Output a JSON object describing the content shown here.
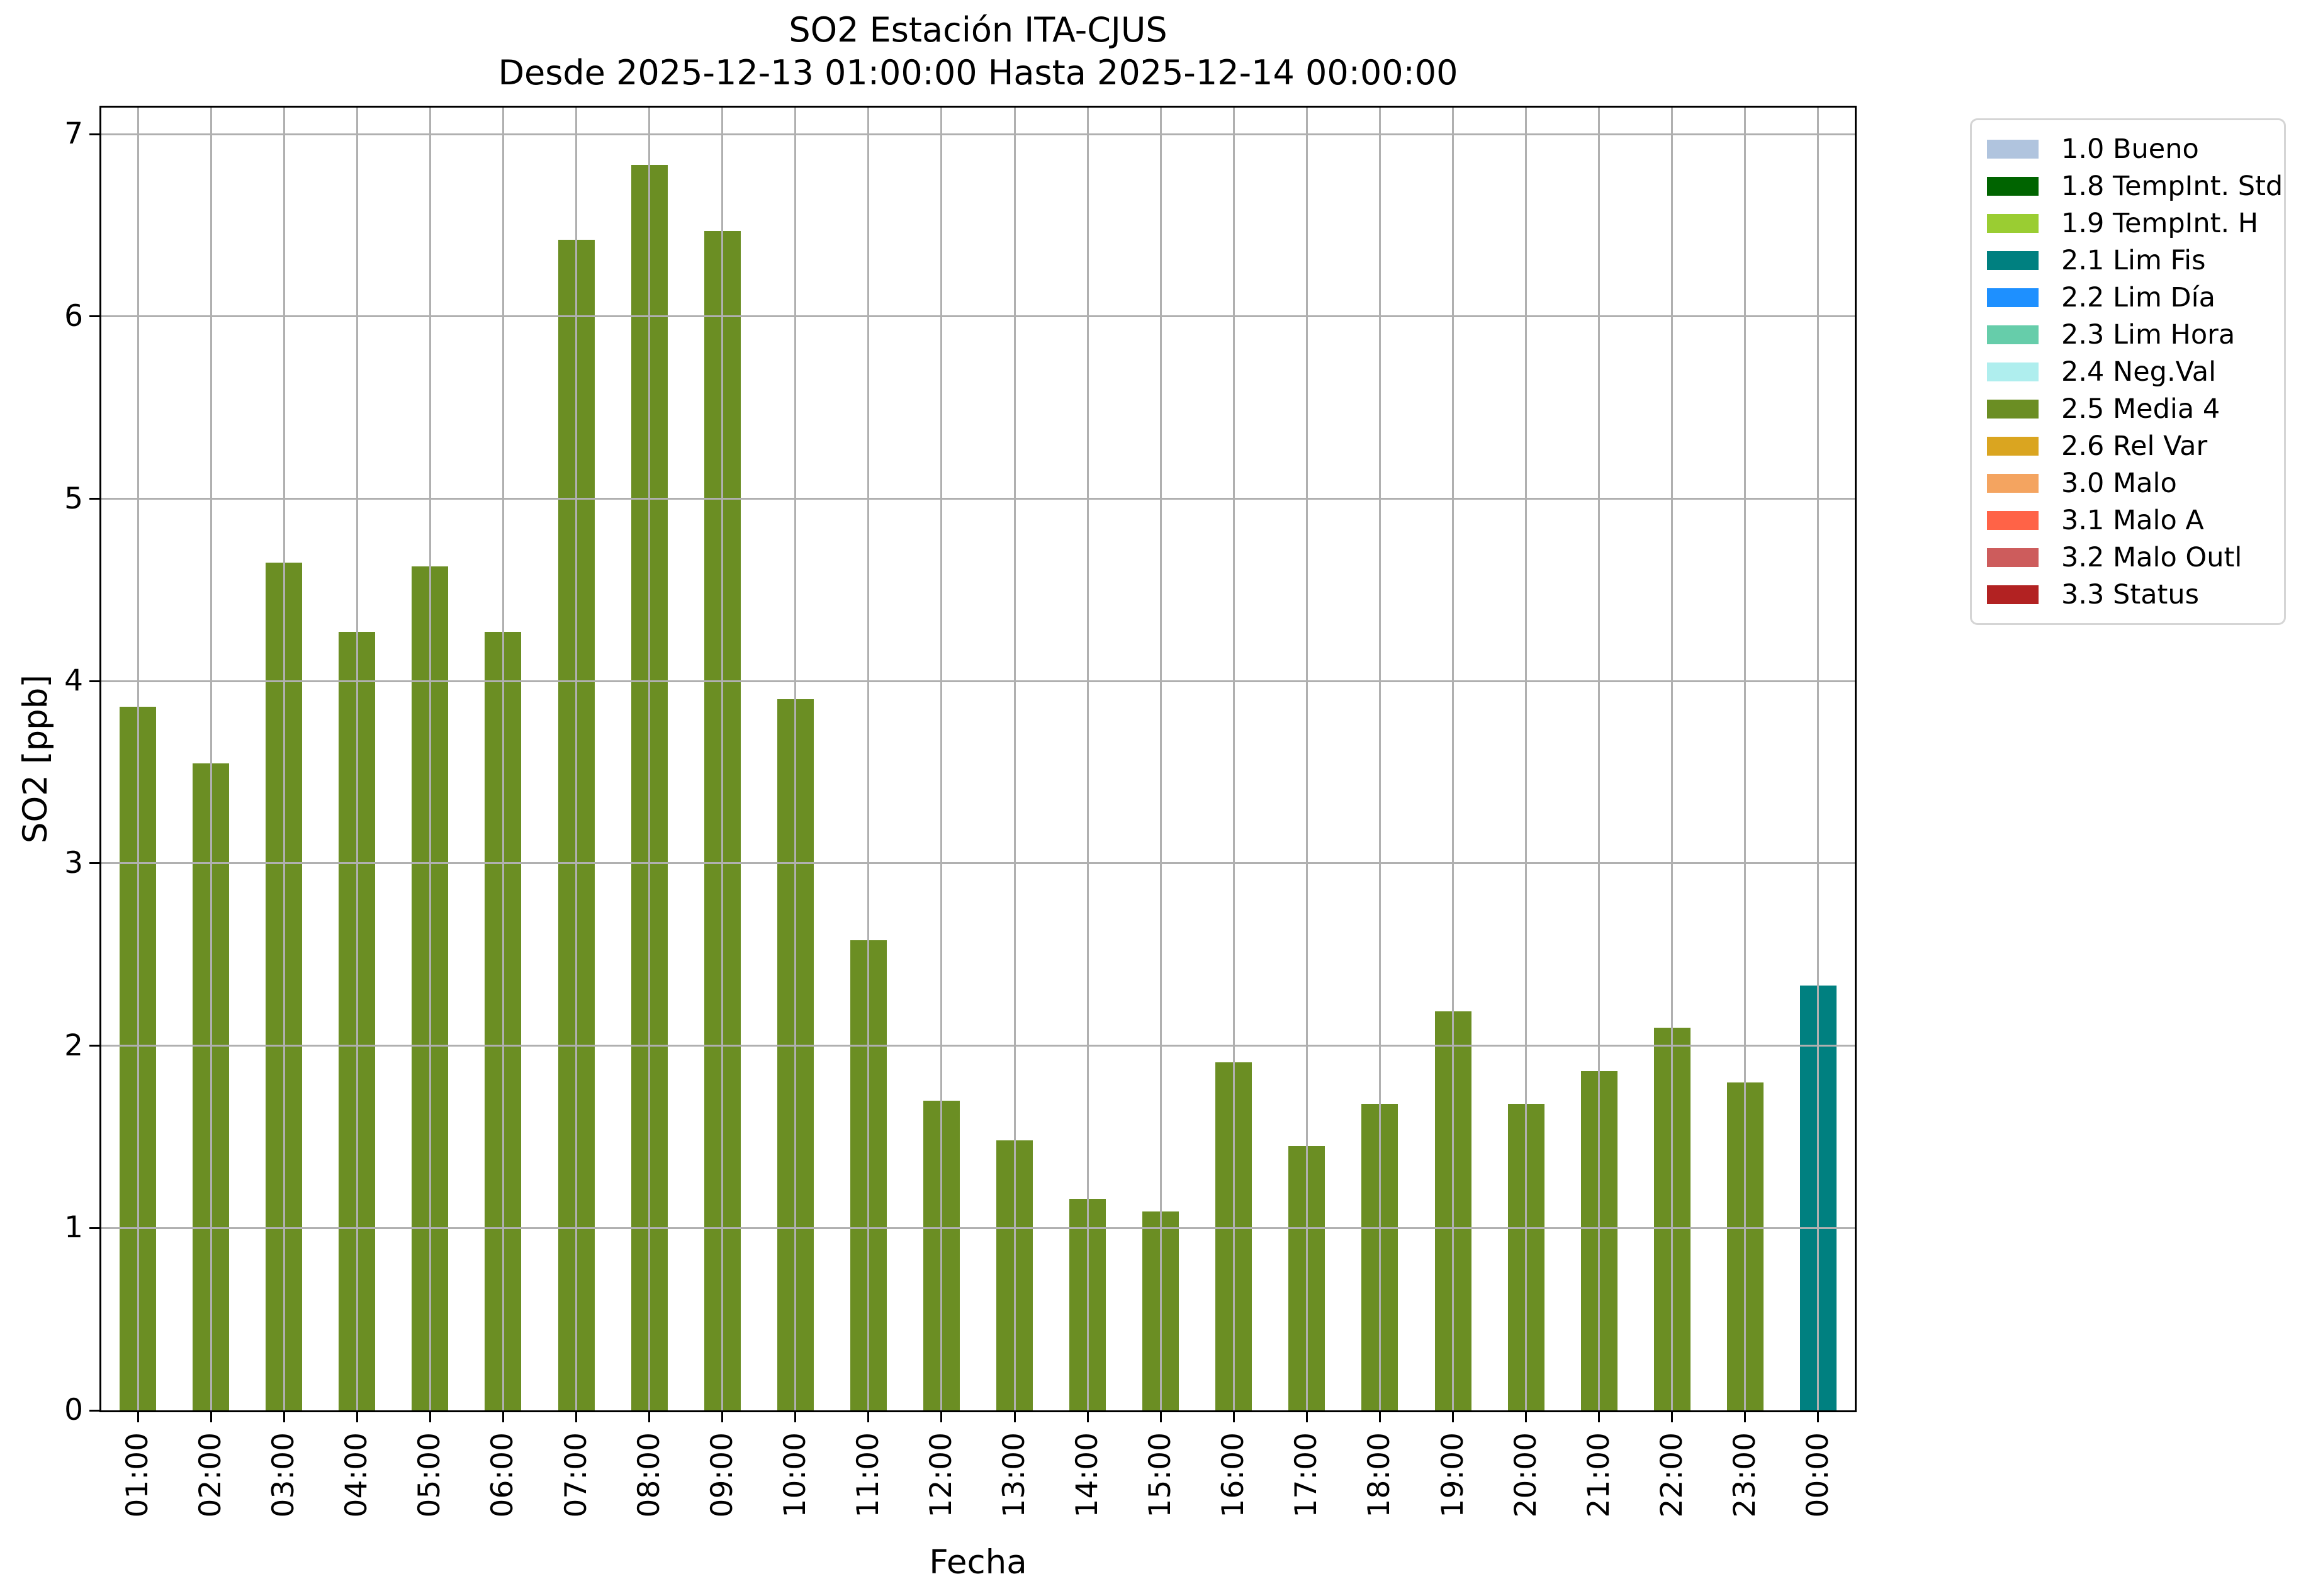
{
  "title": {
    "line1": "SO2 Estación ITA-CJUS",
    "line2": "Desde 2025-12-13 01:00:00 Hasta 2025-12-14 00:00:00"
  },
  "axes": {
    "ylabel": "SO2 [ppb]",
    "xlabel": "Fecha",
    "yticks": [
      0,
      1,
      2,
      3,
      4,
      5,
      6,
      7
    ]
  },
  "chart_data": {
    "type": "bar",
    "title": "SO2 Estación ITA-CJUS",
    "subtitle": "Desde 2025-12-13 01:00:00 Hasta 2025-12-14 00:00:00",
    "xlabel": "Fecha",
    "ylabel": "SO2 [ppb]",
    "ylim": [
      0,
      7.17
    ],
    "grid": true,
    "legend_position": "outside-right",
    "categories": [
      "01:00",
      "02:00",
      "03:00",
      "04:00",
      "05:00",
      "06:00",
      "07:00",
      "08:00",
      "09:00",
      "10:00",
      "11:00",
      "12:00",
      "13:00",
      "14:00",
      "15:00",
      "16:00",
      "17:00",
      "18:00",
      "19:00",
      "20:00",
      "21:00",
      "22:00",
      "23:00",
      "00:00"
    ],
    "values": [
      3.86,
      3.55,
      4.65,
      4.27,
      4.63,
      4.27,
      6.42,
      6.83,
      6.47,
      3.9,
      2.58,
      1.7,
      1.48,
      1.16,
      1.09,
      1.91,
      1.45,
      1.68,
      2.19,
      1.68,
      1.86,
      2.1,
      1.8,
      2.33
    ],
    "point_status": [
      "2.5 Media 4",
      "2.5 Media 4",
      "2.5 Media 4",
      "2.5 Media 4",
      "2.5 Media 4",
      "2.5 Media 4",
      "2.5 Media 4",
      "2.5 Media 4",
      "2.5 Media 4",
      "2.5 Media 4",
      "2.5 Media 4",
      "2.5 Media 4",
      "2.5 Media 4",
      "2.5 Media 4",
      "2.5 Media 4",
      "2.5 Media 4",
      "2.5 Media 4",
      "2.5 Media 4",
      "2.5 Media 4",
      "2.5 Media 4",
      "2.5 Media 4",
      "2.5 Media 4",
      "2.5 Media 4",
      "2.1 Lim Fis"
    ],
    "status_colors": {
      "2.5 Media 4": "#6B8E23",
      "2.1 Lim Fis": "#008080"
    }
  },
  "legend": {
    "items": [
      {
        "label": "1.0 Bueno",
        "color": "#B0C4DE"
      },
      {
        "label": "1.8 TempInt. Std",
        "color": "#006400"
      },
      {
        "label": "1.9 TempInt. H",
        "color": "#9ACD32"
      },
      {
        "label": "2.1 Lim Fis",
        "color": "#008080"
      },
      {
        "label": "2.2 Lim Día",
        "color": "#1E90FF"
      },
      {
        "label": "2.3 Lim Hora",
        "color": "#66CDAA"
      },
      {
        "label": "2.4 Neg.Val",
        "color": "#AFEEEE"
      },
      {
        "label": "2.5 Media 4",
        "color": "#6B8E23"
      },
      {
        "label": "2.6 Rel Var",
        "color": "#DAA520"
      },
      {
        "label": "3.0 Malo",
        "color": "#F4A460"
      },
      {
        "label": "3.1 Malo A",
        "color": "#FF6347"
      },
      {
        "label": "3.2 Malo Outl",
        "color": "#CD5C5C"
      },
      {
        "label": "3.3 Status",
        "color": "#B22222"
      }
    ]
  },
  "colors": {
    "grid": "#B0B0B0",
    "spine": "#000000",
    "background": "#FFFFFF",
    "legend_border": "#D5D5D5"
  }
}
